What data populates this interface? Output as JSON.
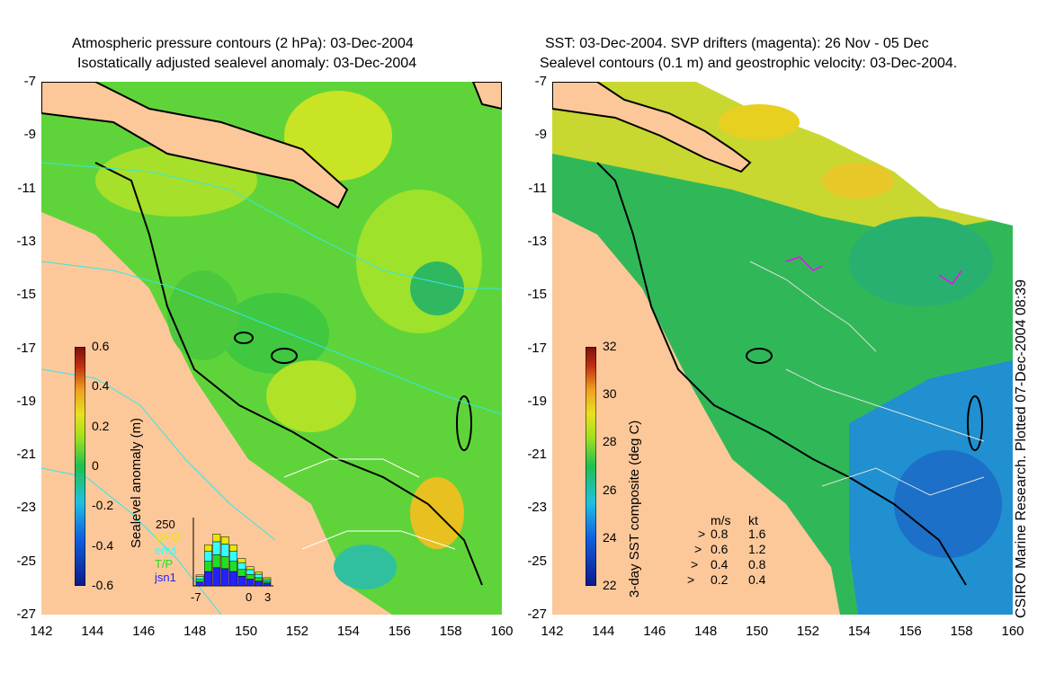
{
  "left": {
    "title_line1": "Atmospheric pressure contours (2 hPa): 03-Dec-2004",
    "title_line2": "Isostatically adjusted sealevel anomaly: 03-Dec-2004",
    "colorbar_label": "Sealevel anomaly (m)",
    "colorbar_ticks": [
      "0.6",
      "0.4",
      "0.2",
      "0",
      "-0.2",
      "-0.4",
      "-0.6"
    ],
    "inset": {
      "ymax_label": "250",
      "legend": [
        {
          "label": "GFO",
          "color": "#e8e800"
        },
        {
          "label": "envi",
          "color": "#33ffff"
        },
        {
          "label": "T/P",
          "color": "#22dd22"
        },
        {
          "label": "jsn1",
          "color": "#2222ff"
        }
      ],
      "x_labels": [
        "-7",
        "0",
        "3"
      ]
    }
  },
  "right": {
    "title_line1": "SST: 03-Dec-2004. SVP drifters (magenta): 26 Nov - 05 Dec",
    "title_line2": "Sealevel contours (0.1 m) and geostrophic velocity: 03-Dec-2004.",
    "colorbar_label": "3-day SST composite (deg C)",
    "colorbar_ticks": [
      "32",
      "30",
      "28",
      "26",
      "24",
      "22"
    ],
    "speed_key": {
      "header_ms": "m/s",
      "header_kt": "kt",
      "rows": [
        {
          "ms": "0.8",
          "kt": "1.6"
        },
        {
          "ms": "0.6",
          "kt": "1.2"
        },
        {
          "ms": "0.4",
          "kt": "0.8"
        },
        {
          "ms": "0.2",
          "kt": "0.4"
        }
      ]
    }
  },
  "side_text": "CSIRO Marine Research. Plotted 07-Dec-2004 08:39",
  "axes": {
    "y_ticks": [
      "-7",
      "-9",
      "-11",
      "-13",
      "-15",
      "-17",
      "-19",
      "-21",
      "-23",
      "-25",
      "-27"
    ],
    "x_ticks": [
      "142",
      "144",
      "146",
      "148",
      "150",
      "152",
      "154",
      "156",
      "158",
      "160"
    ]
  },
  "colors": {
    "land": "#fcc89a",
    "sla_cmap": [
      "#0a1a8a",
      "#1060e0",
      "#20c0e0",
      "#20c050",
      "#a0e020",
      "#e8e020",
      "#f0a020",
      "#c03010",
      "#7a1010"
    ],
    "sst_cmap": [
      "#0a1a8a",
      "#1060e0",
      "#20c0e0",
      "#20c050",
      "#a0e020",
      "#e8e020",
      "#f0a020",
      "#c03010",
      "#7a1010"
    ],
    "drifter": "#ff00ff"
  },
  "chart_data": [
    {
      "type": "heatmap",
      "title": "Atmospheric pressure contours (2 hPa): 03-Dec-2004 / Isostatically adjusted sealevel anomaly: 03-Dec-2004",
      "xlim": [
        142,
        160
      ],
      "ylim": [
        -27,
        -7
      ],
      "colorbar": {
        "label": "Sealevel anomaly (m)",
        "range": [
          -0.6,
          0.6
        ]
      },
      "inset_histogram": {
        "ymax": 250,
        "x_range": [
          -7,
          3
        ],
        "series": [
          "GFO",
          "envi",
          "T/P",
          "jsn1"
        ],
        "bins": [
          -6,
          -5,
          -4,
          -3,
          -2,
          -1,
          0,
          1,
          2
        ],
        "stacked_totals": [
          40,
          150,
          190,
          180,
          150,
          100,
          70,
          50,
          30
        ]
      }
    },
    {
      "type": "heatmap",
      "title": "SST: 03-Dec-2004. SVP drifters (magenta): 26 Nov - 05 Dec / Sealevel contours (0.1 m) and geostrophic velocity: 03-Dec-2004.",
      "xlim": [
        142,
        160
      ],
      "ylim": [
        -27,
        -7
      ],
      "colorbar": {
        "label": "3-day SST composite (deg C)",
        "range": [
          22,
          32
        ]
      },
      "speed_key": {
        "m_s": [
          0.8,
          0.6,
          0.4,
          0.2
        ],
        "kt": [
          1.6,
          1.2,
          0.8,
          0.4
        ]
      }
    }
  ]
}
